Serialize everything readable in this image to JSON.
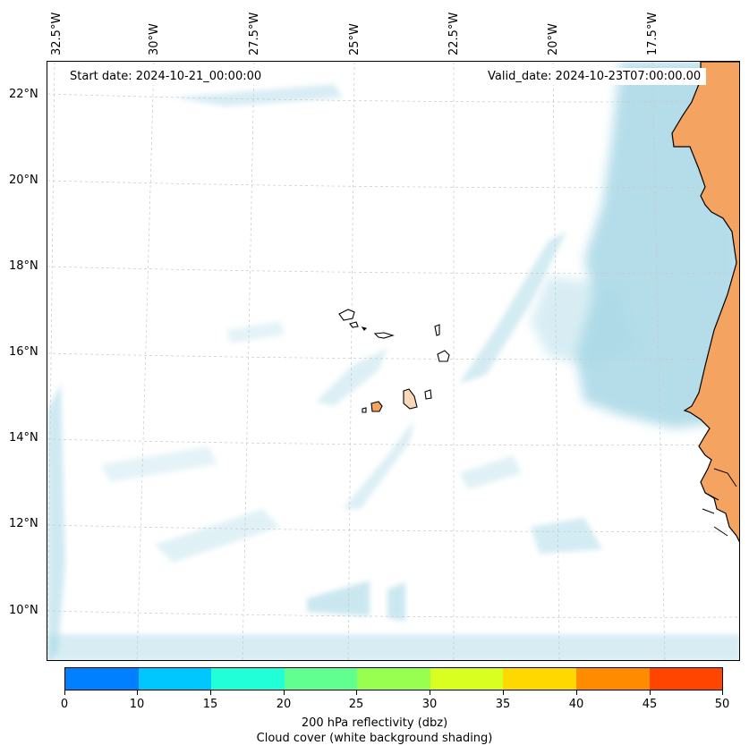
{
  "map": {
    "start_date": "Start date: 2024-10-21_00:00:00",
    "valid_date": "Valid_date: 2024-10-23T07:00:00.00",
    "lon_labels": [
      "32.5°W",
      "30°W",
      "27.5°W",
      "25°W",
      "22.5°W",
      "20°W",
      "17.5°W"
    ],
    "lat_labels": [
      "22°N",
      "20°N",
      "18°N",
      "16°N",
      "14°N",
      "12°N",
      "10°N"
    ],
    "colors": {
      "cloud": "#a8d8e6",
      "land": "#f4a460",
      "coast": "#000000",
      "grid": "#c8c8c8"
    }
  },
  "colorbar": {
    "ticks": [
      "0",
      "10",
      "15",
      "20",
      "25",
      "30",
      "35",
      "40",
      "45",
      "50"
    ],
    "colors": [
      "#0080ff",
      "#00c8ff",
      "#20ffd8",
      "#60ff90",
      "#98ff50",
      "#d8ff20",
      "#ffd800",
      "#ff8c00",
      "#ff4500"
    ],
    "label_line1": "200 hPa reflectivity (dbz)",
    "label_line2": "Cloud cover (white background shading)"
  }
}
